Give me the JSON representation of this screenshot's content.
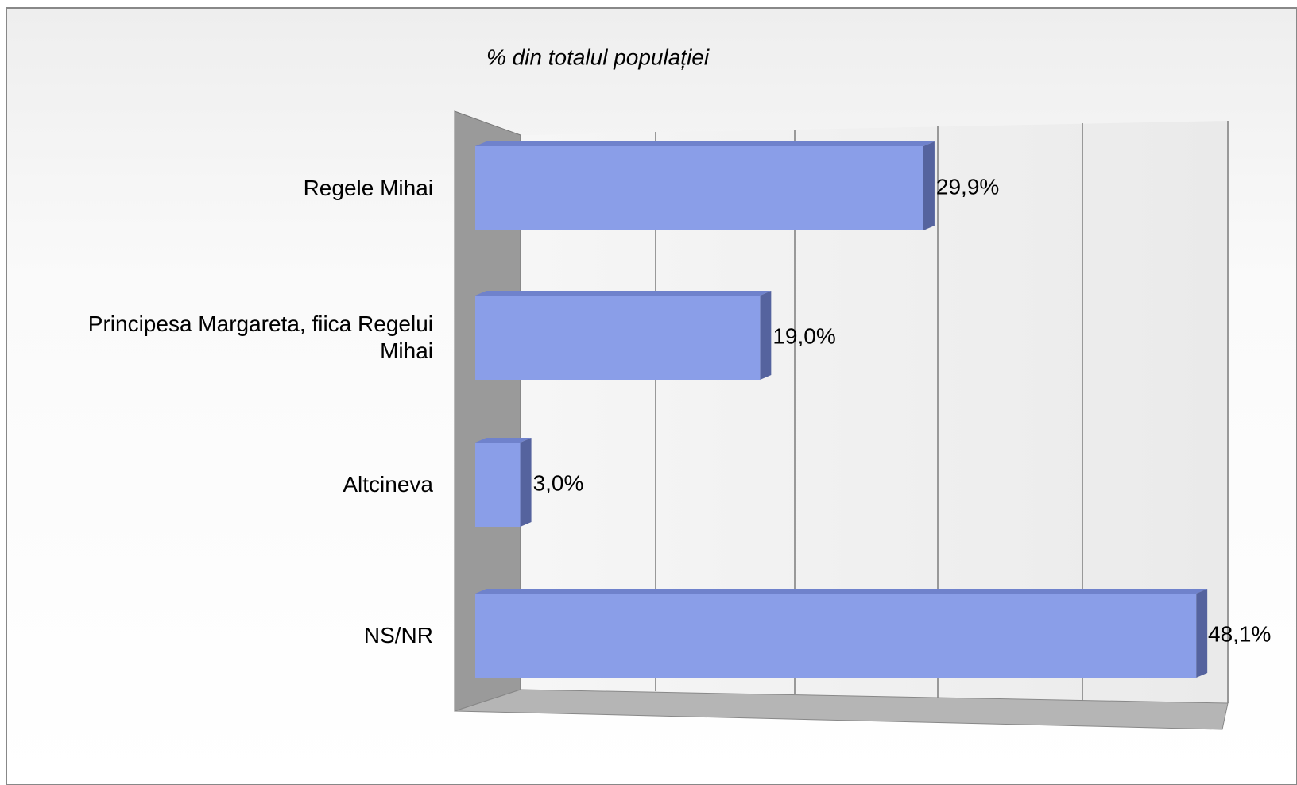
{
  "chart_data": {
    "type": "bar",
    "orientation": "horizontal",
    "title": "% din totalul populației",
    "categories": [
      "Regele Mihai",
      "Principesa Margareta, fiica Regelui Mihai",
      "Altcineva",
      "NS/NR"
    ],
    "values": [
      29.9,
      19.0,
      3.0,
      48.1
    ],
    "value_labels": [
      "29,9%",
      "19,0%",
      "3,0%",
      "48,1%"
    ],
    "color": "#8a9ee8",
    "xlim": [
      0,
      50
    ]
  }
}
